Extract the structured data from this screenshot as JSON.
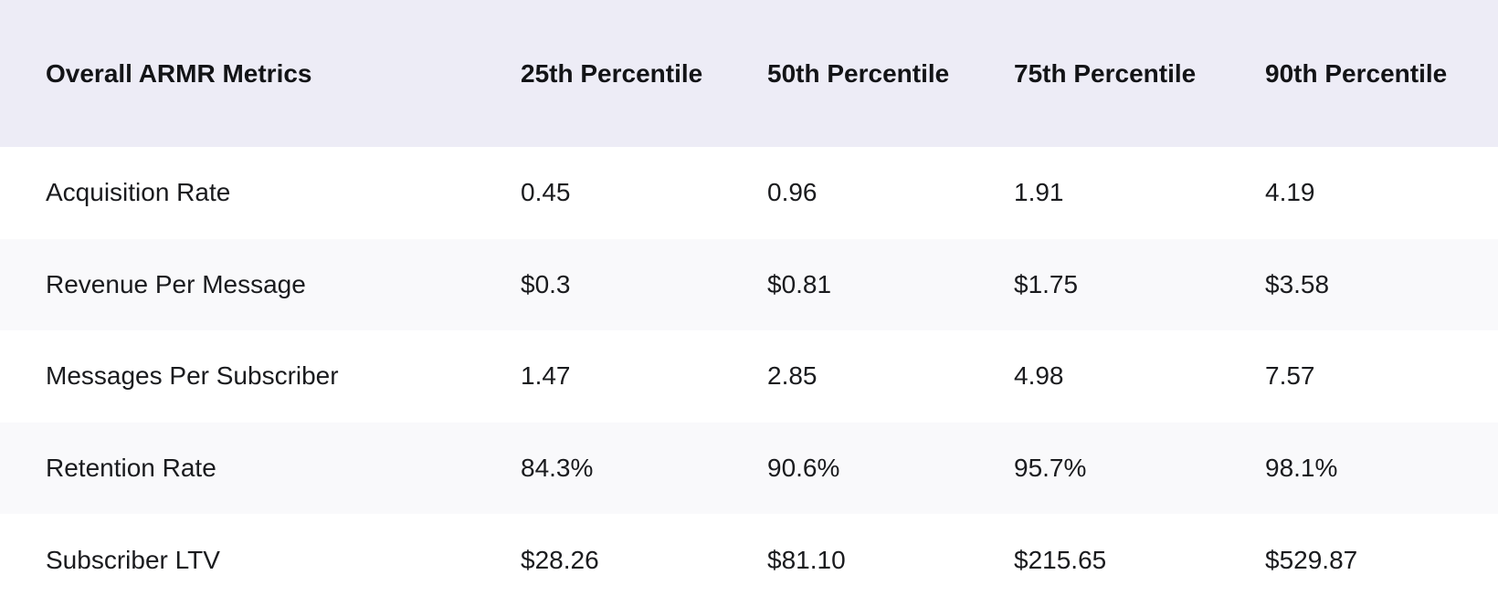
{
  "chart_data": {
    "type": "table",
    "title": "Overall ARMR Metrics",
    "columns": [
      "25th Percentile",
      "50th Percentile",
      "75th Percentile",
      "90th Percentile"
    ],
    "rows": [
      {
        "metric": "Acquisition Rate",
        "values": [
          "0.45",
          "0.96",
          "1.91",
          "4.19"
        ]
      },
      {
        "metric": "Revenue Per Message",
        "values": [
          "$0.3",
          "$0.81",
          "$1.75",
          "$3.58"
        ]
      },
      {
        "metric": "Messages Per Subscriber",
        "values": [
          "1.47",
          "2.85",
          "4.98",
          "7.57"
        ]
      },
      {
        "metric": "Retention Rate",
        "values": [
          "84.3%",
          "90.6%",
          "95.7%",
          "98.1%"
        ]
      },
      {
        "metric": "Subscriber LTV",
        "values": [
          "$28.26",
          "$81.10",
          "$215.65",
          "$529.87"
        ]
      }
    ],
    "layout": {
      "legend": "none",
      "grid": "off",
      "row_striping": "alternating"
    }
  },
  "colors": {
    "header_background": "#EDECF6",
    "row_background": "#FFFFFF",
    "row_alt_background": "#F9F9FB",
    "header_text": "#131417",
    "body_text": "#1A1B1E"
  }
}
